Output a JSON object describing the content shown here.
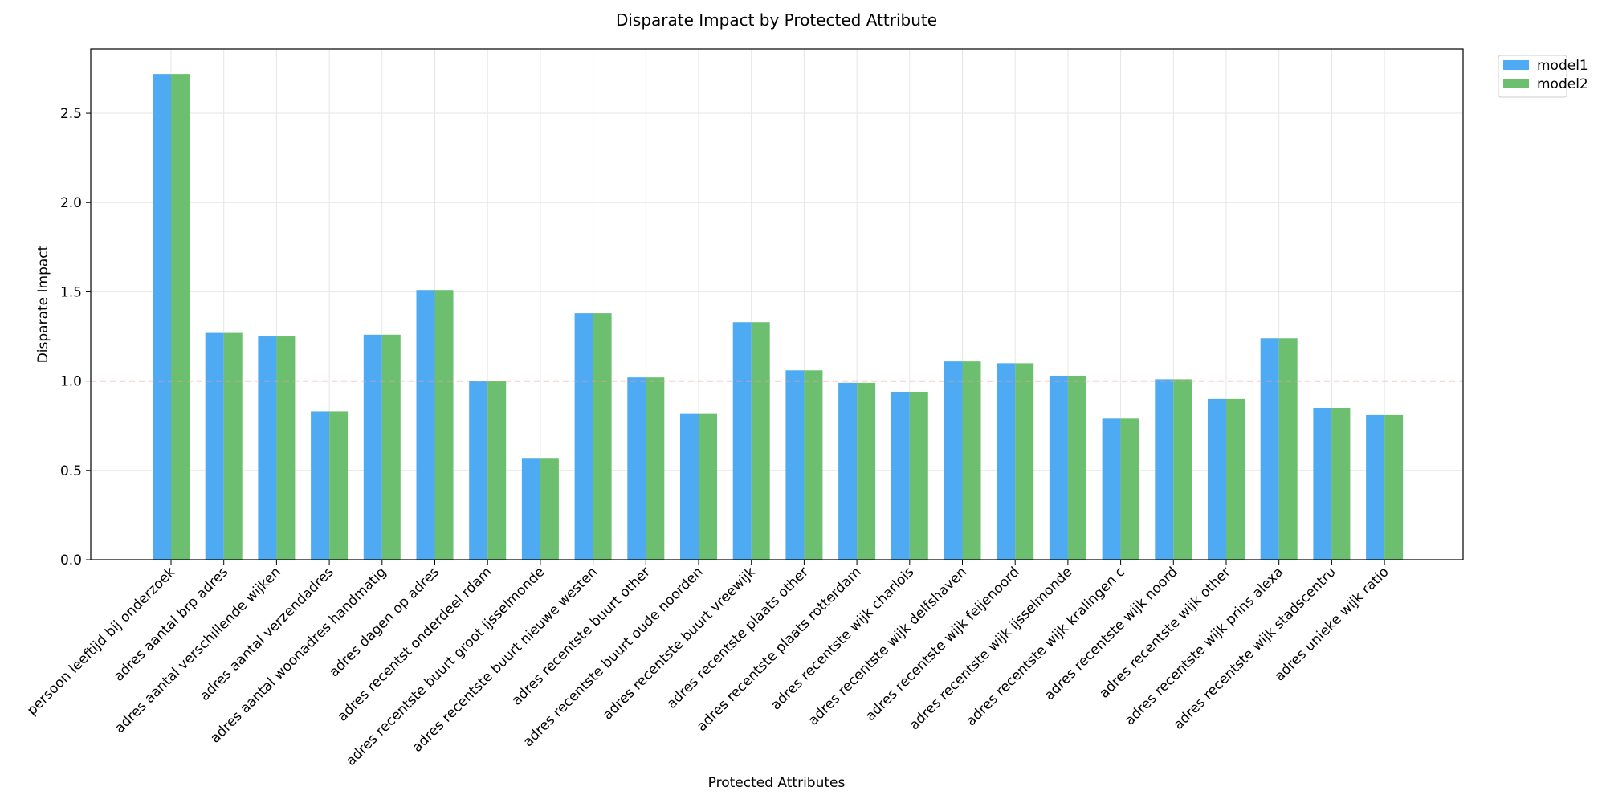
{
  "chart_data": {
    "type": "bar",
    "title": "Disparate Impact by Protected Attribute",
    "xlabel": "Protected Attributes",
    "ylabel": "Disparate Impact",
    "ylim": [
      0,
      2.86
    ],
    "yticks": [
      "0.0",
      "0.5",
      "1.0",
      "1.5",
      "2.0",
      "2.5"
    ],
    "grid": true,
    "legend_position": "outside-top-right",
    "reference_line": {
      "y": 1.0,
      "style": "dashed",
      "color": "#f4a0a0"
    },
    "categories": [
      "persoon leeftijd bij onderzoek",
      "adres aantal brp adres",
      "adres aantal verschillende wijken",
      "adres aantal verzendadres",
      "adres aantal woonadres handmatig",
      "adres dagen op adres",
      "adres recentst onderdeel rdam",
      "adres recentste buurt groot ijsselmonde",
      "adres recentste buurt nieuwe westen",
      "adres recentste buurt other",
      "adres recentste buurt oude noorden",
      "adres recentste buurt vreewijk",
      "adres recentste plaats other",
      "adres recentste plaats rotterdam",
      "adres recentste wijk charlois",
      "adres recentste wijk delfshaven",
      "adres recentste wijk feijenoord",
      "adres recentste wijk ijsselmonde",
      "adres recentste wijk kralingen c",
      "adres recentste wijk noord",
      "adres recentste wijk other",
      "adres recentste wijk prins alexa",
      "adres recentste wijk stadscentru",
      "adres unieke wijk ratio"
    ],
    "series": [
      {
        "name": "model1",
        "color": "#4eaaf2",
        "values": [
          2.72,
          1.27,
          1.25,
          0.83,
          1.26,
          1.51,
          1.0,
          0.57,
          1.38,
          1.02,
          0.82,
          1.33,
          1.06,
          0.99,
          0.94,
          1.11,
          1.1,
          1.03,
          0.79,
          1.01,
          0.9,
          1.24,
          0.85,
          0.81
        ]
      },
      {
        "name": "model2",
        "color": "#6cbf6f",
        "values": [
          2.72,
          1.27,
          1.25,
          0.83,
          1.26,
          1.51,
          1.0,
          0.57,
          1.38,
          1.02,
          0.82,
          1.33,
          1.06,
          0.99,
          0.94,
          1.11,
          1.1,
          1.03,
          0.79,
          1.01,
          0.9,
          1.24,
          0.85,
          0.81
        ]
      }
    ]
  }
}
